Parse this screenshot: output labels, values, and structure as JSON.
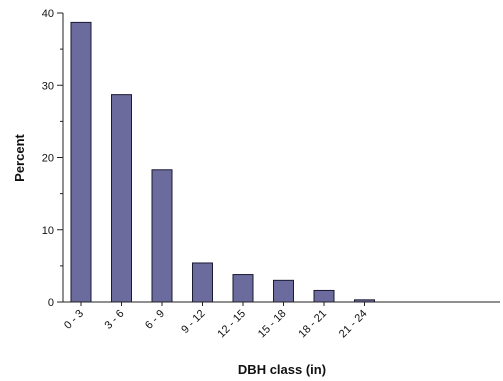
{
  "chart_data": {
    "type": "bar",
    "categories": [
      "0 - 3",
      "3 - 6",
      "6 - 9",
      "9 - 12",
      "12 - 15",
      "15 - 18",
      "18 - 21",
      "21 - 24"
    ],
    "values": [
      38.7,
      28.7,
      18.3,
      5.4,
      3.8,
      3.0,
      1.6,
      0.3
    ],
    "xlabel": "DBH class (in)",
    "ylabel": "Percent",
    "ylim": [
      0,
      40
    ],
    "yticks": [
      0,
      10,
      20,
      30,
      40
    ],
    "grid": false,
    "bar_color": "#6b6b9e"
  }
}
